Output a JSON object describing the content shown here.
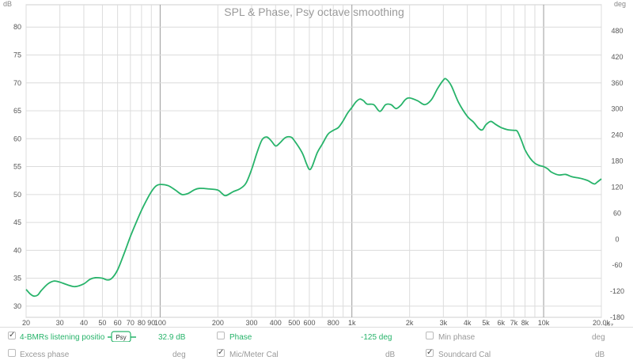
{
  "chart_data": {
    "type": "line",
    "title": "SPL & Phase, Psy octave smoothing",
    "left_unit": "dB",
    "right_unit": "deg",
    "x_unit": "Hz",
    "x_scale": "log",
    "xlim": [
      20,
      20000
    ],
    "ylim": [
      28,
      84
    ],
    "y2lim": [
      -180,
      540
    ],
    "yticks": [
      30,
      35,
      40,
      45,
      50,
      55,
      60,
      65,
      70,
      75,
      80
    ],
    "y2ticks": [
      -180,
      -120,
      -60,
      0,
      60,
      120,
      180,
      240,
      300,
      360,
      420,
      480
    ],
    "xticks": [
      {
        "v": 20,
        "label": "20"
      },
      {
        "v": 30,
        "label": "30"
      },
      {
        "v": 40,
        "label": "40"
      },
      {
        "v": 50,
        "label": "50"
      },
      {
        "v": 60,
        "label": "60"
      },
      {
        "v": 70,
        "label": "70"
      },
      {
        "v": 80,
        "label": "80"
      },
      {
        "v": 90,
        "label": "90"
      },
      {
        "v": 100,
        "label": "100"
      },
      {
        "v": 200,
        "label": "200"
      },
      {
        "v": 300,
        "label": "300"
      },
      {
        "v": 400,
        "label": "400"
      },
      {
        "v": 500,
        "label": "500"
      },
      {
        "v": 600,
        "label": "600"
      },
      {
        "v": 800,
        "label": "800"
      },
      {
        "v": 1000,
        "label": "1k"
      },
      {
        "v": 2000,
        "label": "2k"
      },
      {
        "v": 3000,
        "label": "3k"
      },
      {
        "v": 4000,
        "label": "4k"
      },
      {
        "v": 5000,
        "label": "5k"
      },
      {
        "v": 6000,
        "label": "6k"
      },
      {
        "v": 7000,
        "label": "7k"
      },
      {
        "v": 8000,
        "label": "8k"
      },
      {
        "v": 10000,
        "label": "10k"
      },
      {
        "v": 20000,
        "label": "20.0k"
      }
    ],
    "grid": true,
    "series": [
      {
        "name": "4-BMRs listening positio",
        "color": "#27b36a",
        "points": [
          [
            20,
            33
          ],
          [
            21,
            32.2
          ],
          [
            22,
            31.8
          ],
          [
            23,
            32
          ],
          [
            24,
            32.8
          ],
          [
            26,
            34
          ],
          [
            28,
            34.5
          ],
          [
            30,
            34.3
          ],
          [
            33,
            33.8
          ],
          [
            36,
            33.5
          ],
          [
            40,
            34
          ],
          [
            43,
            34.8
          ],
          [
            46,
            35.1
          ],
          [
            50,
            35
          ],
          [
            53,
            34.7
          ],
          [
            56,
            35
          ],
          [
            60,
            36.5
          ],
          [
            65,
            39.5
          ],
          [
            70,
            42.5
          ],
          [
            75,
            45
          ],
          [
            80,
            47.2
          ],
          [
            85,
            49
          ],
          [
            90,
            50.5
          ],
          [
            95,
            51.5
          ],
          [
            100,
            51.8
          ],
          [
            110,
            51.6
          ],
          [
            120,
            50.8
          ],
          [
            130,
            50
          ],
          [
            140,
            50.2
          ],
          [
            150,
            50.8
          ],
          [
            160,
            51.1
          ],
          [
            180,
            51
          ],
          [
            200,
            50.8
          ],
          [
            210,
            50.2
          ],
          [
            220,
            49.8
          ],
          [
            240,
            50.5
          ],
          [
            260,
            51
          ],
          [
            280,
            52
          ],
          [
            300,
            54.5
          ],
          [
            320,
            57.5
          ],
          [
            340,
            59.8
          ],
          [
            360,
            60.3
          ],
          [
            380,
            59.6
          ],
          [
            400,
            58.7
          ],
          [
            420,
            59.2
          ],
          [
            450,
            60.2
          ],
          [
            480,
            60.3
          ],
          [
            500,
            59.7
          ],
          [
            550,
            57.5
          ],
          [
            580,
            55.5
          ],
          [
            600,
            54.5
          ],
          [
            620,
            55
          ],
          [
            660,
            57.5
          ],
          [
            700,
            59
          ],
          [
            750,
            60.8
          ],
          [
            800,
            61.5
          ],
          [
            850,
            62
          ],
          [
            900,
            63.2
          ],
          [
            950,
            64.6
          ],
          [
            1000,
            65.6
          ],
          [
            1050,
            66.6
          ],
          [
            1100,
            67.1
          ],
          [
            1150,
            66.8
          ],
          [
            1200,
            66.2
          ],
          [
            1300,
            66.1
          ],
          [
            1400,
            64.9
          ],
          [
            1500,
            66.1
          ],
          [
            1600,
            66.1
          ],
          [
            1700,
            65.4
          ],
          [
            1800,
            66
          ],
          [
            1900,
            67
          ],
          [
            2000,
            67.3
          ],
          [
            2200,
            66.8
          ],
          [
            2400,
            66.1
          ],
          [
            2600,
            67
          ],
          [
            2800,
            69
          ],
          [
            3000,
            70.5
          ],
          [
            3100,
            70.7
          ],
          [
            3300,
            69.5
          ],
          [
            3600,
            66.5
          ],
          [
            4000,
            64
          ],
          [
            4300,
            63
          ],
          [
            4600,
            61.8
          ],
          [
            4800,
            61.6
          ],
          [
            5000,
            62.5
          ],
          [
            5300,
            63.1
          ],
          [
            5600,
            62.6
          ],
          [
            6000,
            62
          ],
          [
            6500,
            61.6
          ],
          [
            7000,
            61.5
          ],
          [
            7300,
            61.3
          ],
          [
            7700,
            59.5
          ],
          [
            8000,
            58
          ],
          [
            8500,
            56.5
          ],
          [
            9000,
            55.6
          ],
          [
            9500,
            55.2
          ],
          [
            10000,
            55
          ],
          [
            10500,
            54.6
          ],
          [
            11000,
            54
          ],
          [
            12000,
            53.5
          ],
          [
            13000,
            53.6
          ],
          [
            14000,
            53.2
          ],
          [
            15000,
            53
          ],
          [
            16000,
            52.8
          ],
          [
            17000,
            52.5
          ],
          [
            18000,
            52
          ],
          [
            18500,
            51.9
          ],
          [
            19000,
            52.2
          ],
          [
            20000,
            52.8
          ]
        ]
      }
    ]
  },
  "controls": {
    "row1": {
      "measurement_checked": true,
      "measurement_label": "4-BMRs listening positio",
      "smoothing_badge": "Psy",
      "spl_value": "32.9 dB",
      "phase_checked": false,
      "phase_label": "Phase",
      "phase_value": "-125 deg",
      "min_phase_checked": false,
      "min_phase_label": "Min phase",
      "min_phase_unit": "deg"
    },
    "row2": {
      "excess_phase_checked": false,
      "excess_phase_label": "Excess phase",
      "excess_phase_unit": "deg",
      "mic_cal_checked": true,
      "mic_cal_label": "Mic/Meter Cal",
      "mic_cal_unit": "dB",
      "soundcard_cal_checked": true,
      "soundcard_cal_label": "Soundcard Cal",
      "soundcard_cal_unit": "dB"
    }
  }
}
